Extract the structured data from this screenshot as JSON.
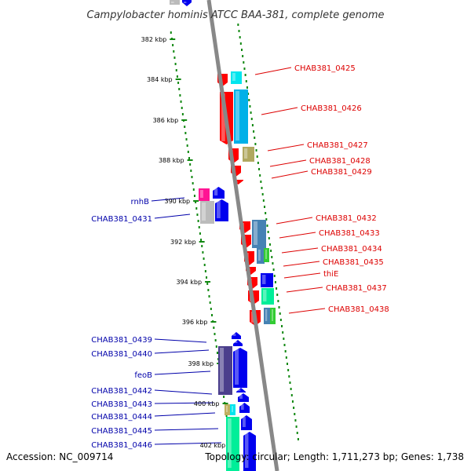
{
  "title": "Campylobacter hominis ATCC BAA-381, complete genome",
  "footer": {
    "accession": "Accession: NC_009714",
    "topology": "Topology: circular; Length: 1,711,273 bp; Genes: 1,738"
  },
  "colors": {
    "forward_label": "#0000aa",
    "reverse_label": "#dd0000",
    "ruler_dots": "#118811",
    "backbone": "#888888"
  },
  "ruler": [
    {
      "label": "382 kbp"
    },
    {
      "label": "384 kbp"
    },
    {
      "label": "386 kbp"
    },
    {
      "label": "388 kbp"
    },
    {
      "label": "390 kbp"
    },
    {
      "label": "392 kbp"
    },
    {
      "label": "394 kbp"
    },
    {
      "label": "396 kbp"
    },
    {
      "label": "398 kbp"
    },
    {
      "label": "400 kbp"
    },
    {
      "label": "402 kbp"
    }
  ],
  "reverse_genes": [
    {
      "label": "CHAB381_0425"
    },
    {
      "label": "CHAB381_0426"
    },
    {
      "label": "CHAB381_0427"
    },
    {
      "label": "CHAB381_0428"
    },
    {
      "label": "CHAB381_0429"
    },
    {
      "label": "CHAB381_0432"
    },
    {
      "label": "CHAB381_0433"
    },
    {
      "label": "CHAB381_0434"
    },
    {
      "label": "CHAB381_0435"
    },
    {
      "label": "thiE"
    },
    {
      "label": "CHAB381_0437"
    },
    {
      "label": "CHAB381_0438"
    }
  ],
  "forward_genes": [
    {
      "label": "rnhB"
    },
    {
      "label": "CHAB381_0431"
    },
    {
      "label": "CHAB381_0439"
    },
    {
      "label": "CHAB381_0440"
    },
    {
      "label": "feoB"
    },
    {
      "label": "CHAB381_0442"
    },
    {
      "label": "CHAB381_0443"
    },
    {
      "label": "CHAB381_0444"
    },
    {
      "label": "CHAB381_0445"
    },
    {
      "label": "CHAB381_0446"
    }
  ]
}
